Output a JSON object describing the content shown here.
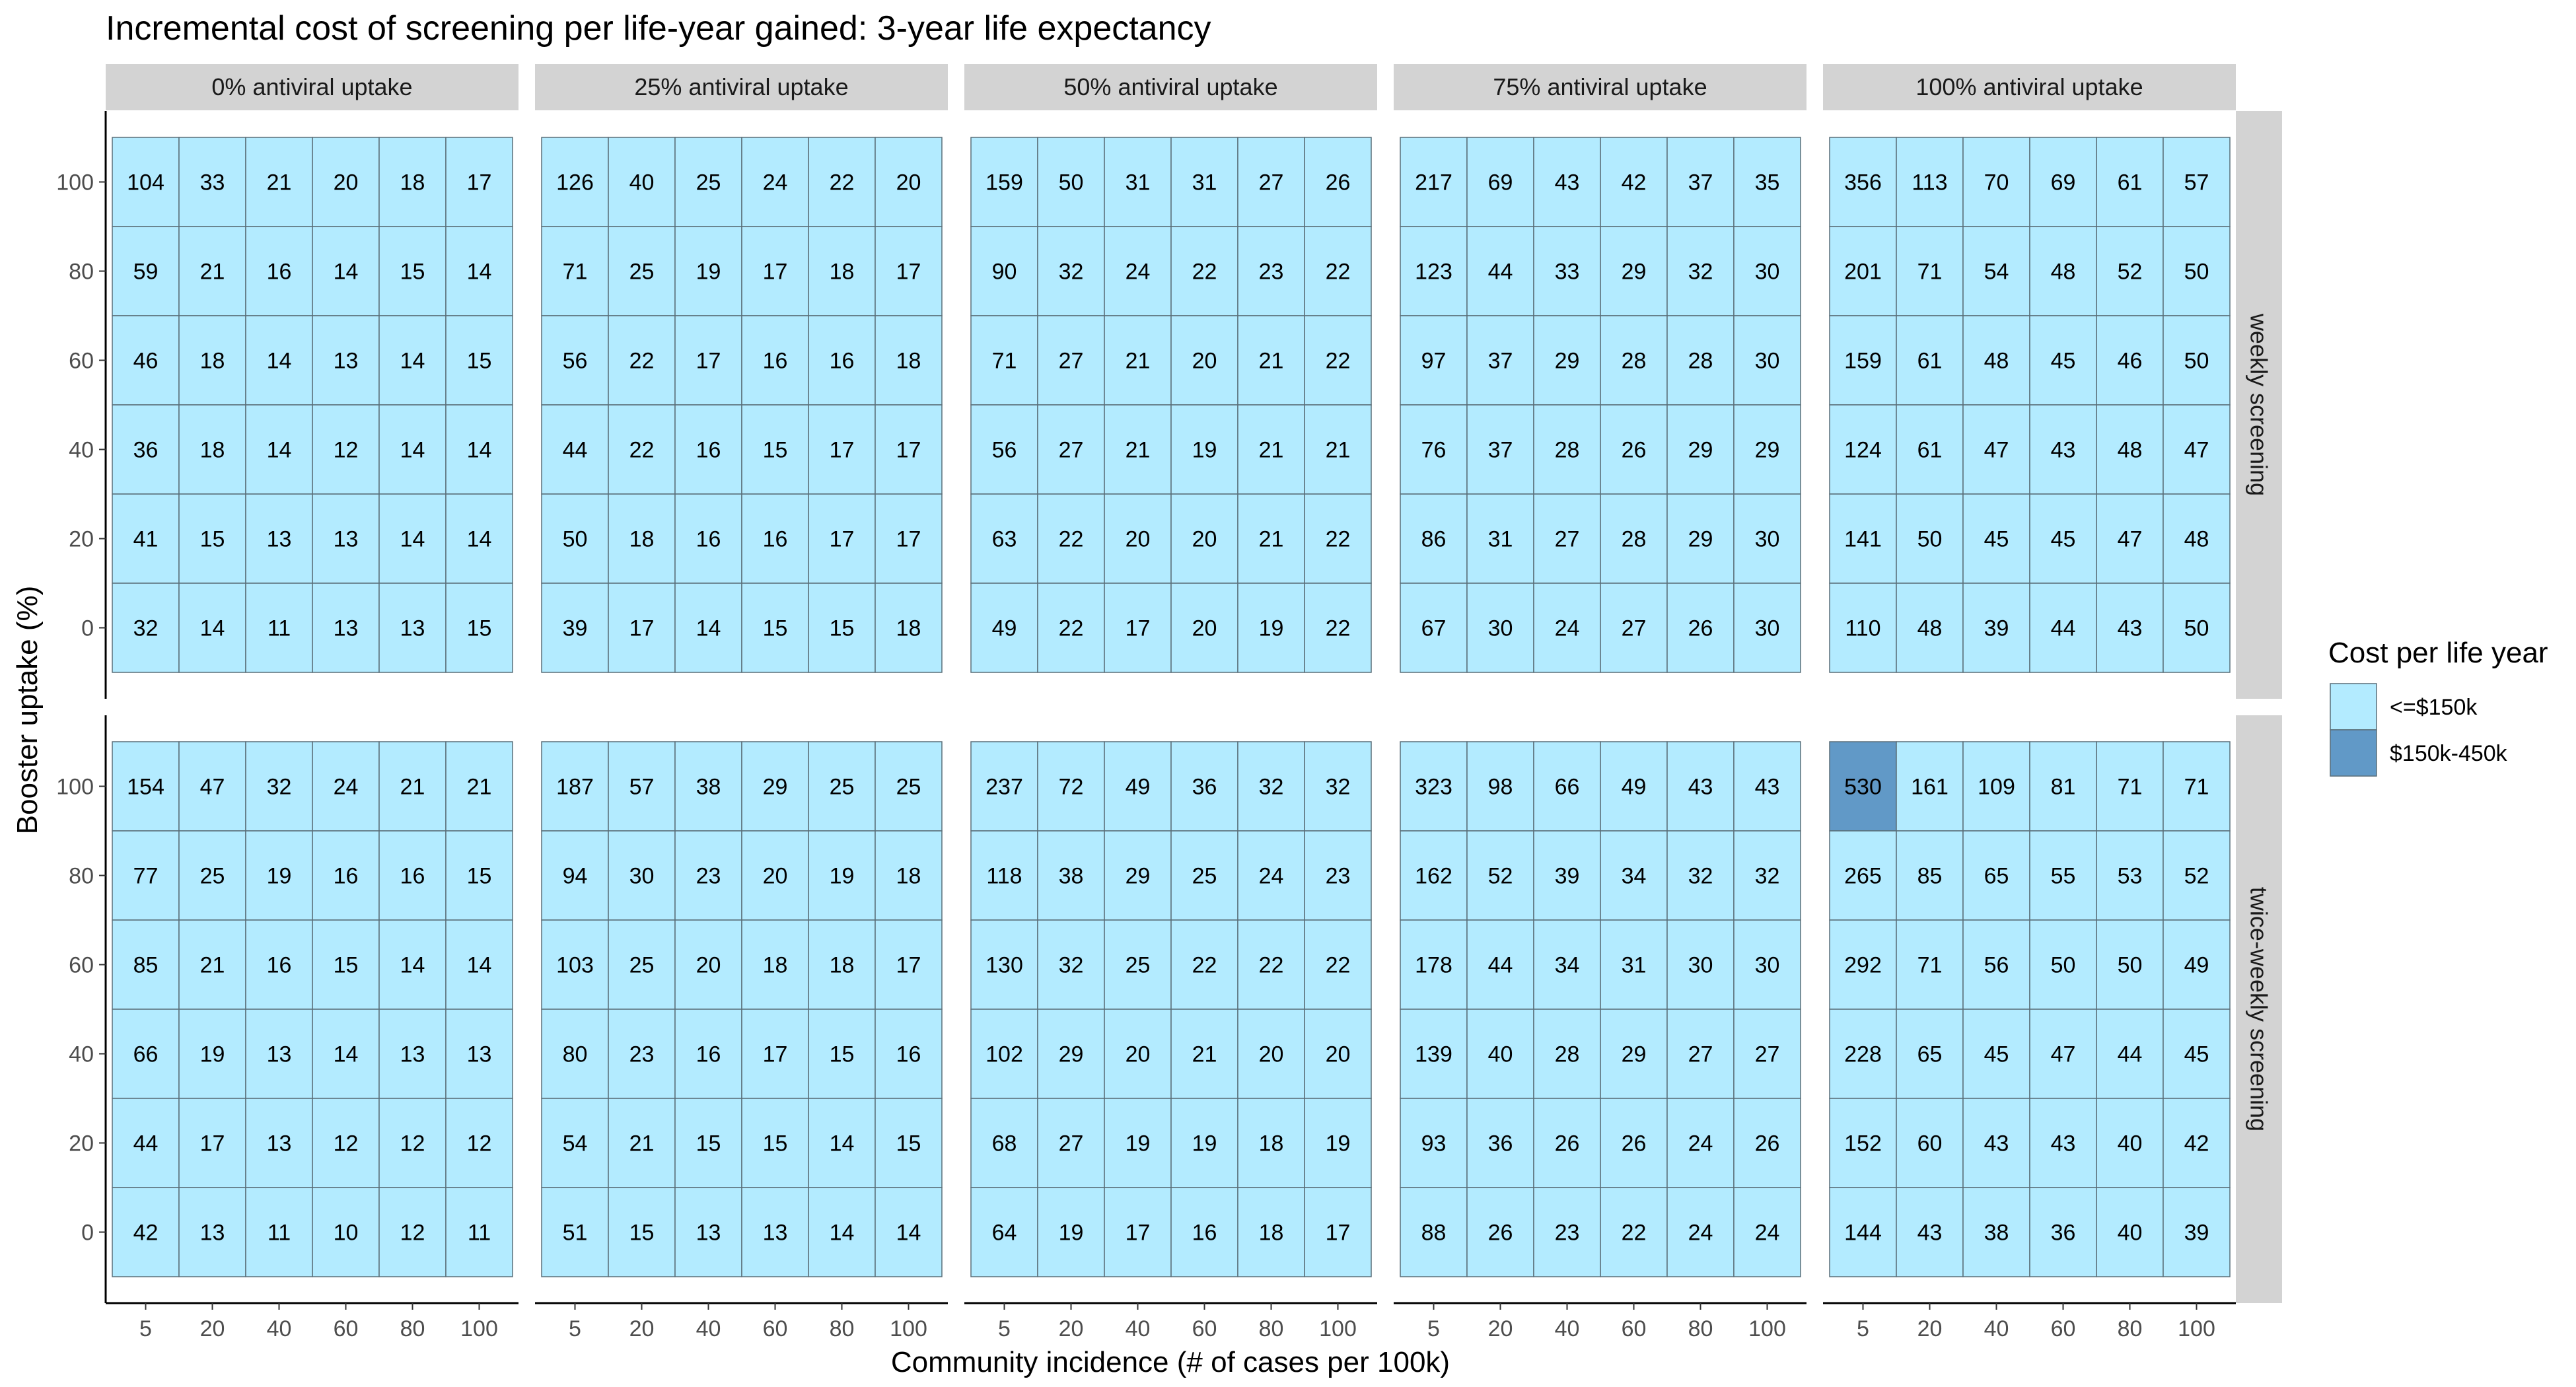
{
  "chart_data": {
    "type": "heatmap",
    "title": "Incremental cost of screening per life-year gained: 3-year life expectancy",
    "xlabel": "Community incidence (# of cases per 100k)",
    "ylabel": "Booster uptake (%)",
    "x": [
      "5",
      "20",
      "40",
      "60",
      "80",
      "100"
    ],
    "y": [
      "100",
      "80",
      "60",
      "40",
      "20",
      "0"
    ],
    "col_facets": [
      "0% antiviral uptake",
      "25% antiviral uptake",
      "50% antiviral uptake",
      "75% antiviral uptake",
      "100% antiviral uptake"
    ],
    "row_facets": [
      "weekly screening",
      "twice-weekly screening"
    ],
    "legend": {
      "title": "Cost per life year",
      "position": "right",
      "items": [
        {
          "label": "<=$150k",
          "color": "#b3ebff"
        },
        {
          "label": "$150k-450k",
          "color": "#6199c7"
        }
      ]
    },
    "threshold": 150,
    "colors": {
      "low": "#b3ebff",
      "high": "#6199c7",
      "border": "#5a6e78",
      "strip": "#d3d3d3"
    },
    "panels": [
      {
        "row": "weekly screening",
        "col": "0% antiviral uptake",
        "values": [
          [
            104,
            33,
            21,
            20,
            18,
            17
          ],
          [
            59,
            21,
            16,
            14,
            15,
            14
          ],
          [
            46,
            18,
            14,
            13,
            14,
            15
          ],
          [
            36,
            18,
            14,
            12,
            14,
            14
          ],
          [
            41,
            15,
            13,
            13,
            14,
            14
          ],
          [
            32,
            14,
            11,
            13,
            13,
            15
          ]
        ]
      },
      {
        "row": "weekly screening",
        "col": "25% antiviral uptake",
        "values": [
          [
            126,
            40,
            25,
            24,
            22,
            20
          ],
          [
            71,
            25,
            19,
            17,
            18,
            17
          ],
          [
            56,
            22,
            17,
            16,
            16,
            18
          ],
          [
            44,
            22,
            16,
            15,
            17,
            17
          ],
          [
            50,
            18,
            16,
            16,
            17,
            17
          ],
          [
            39,
            17,
            14,
            15,
            15,
            18
          ]
        ]
      },
      {
        "row": "weekly screening",
        "col": "50% antiviral uptake",
        "values": [
          [
            159,
            50,
            31,
            31,
            27,
            26
          ],
          [
            90,
            32,
            24,
            22,
            23,
            22
          ],
          [
            71,
            27,
            21,
            20,
            21,
            22
          ],
          [
            56,
            27,
            21,
            19,
            21,
            21
          ],
          [
            63,
            22,
            20,
            20,
            21,
            22
          ],
          [
            49,
            22,
            17,
            20,
            19,
            22
          ]
        ]
      },
      {
        "row": "weekly screening",
        "col": "75% antiviral uptake",
        "values": [
          [
            217,
            69,
            43,
            42,
            37,
            35
          ],
          [
            123,
            44,
            33,
            29,
            32,
            30
          ],
          [
            97,
            37,
            29,
            28,
            28,
            30
          ],
          [
            76,
            37,
            28,
            26,
            29,
            29
          ],
          [
            86,
            31,
            27,
            28,
            29,
            30
          ],
          [
            67,
            30,
            24,
            27,
            26,
            30
          ]
        ]
      },
      {
        "row": "weekly screening",
        "col": "100% antiviral uptake",
        "values": [
          [
            356,
            113,
            70,
            69,
            61,
            57
          ],
          [
            201,
            71,
            54,
            48,
            52,
            50
          ],
          [
            159,
            61,
            48,
            45,
            46,
            50
          ],
          [
            124,
            61,
            47,
            43,
            48,
            47
          ],
          [
            141,
            50,
            45,
            45,
            47,
            48
          ],
          [
            110,
            48,
            39,
            44,
            43,
            50
          ]
        ]
      },
      {
        "row": "twice-weekly screening",
        "col": "0% antiviral uptake",
        "values": [
          [
            154,
            47,
            32,
            24,
            21,
            21
          ],
          [
            77,
            25,
            19,
            16,
            16,
            15
          ],
          [
            85,
            21,
            16,
            15,
            14,
            14
          ],
          [
            66,
            19,
            13,
            14,
            13,
            13
          ],
          [
            44,
            17,
            13,
            12,
            12,
            12
          ],
          [
            42,
            13,
            11,
            10,
            12,
            11
          ]
        ]
      },
      {
        "row": "twice-weekly screening",
        "col": "25% antiviral uptake",
        "values": [
          [
            187,
            57,
            38,
            29,
            25,
            25
          ],
          [
            94,
            30,
            23,
            20,
            19,
            18
          ],
          [
            103,
            25,
            20,
            18,
            18,
            17
          ],
          [
            80,
            23,
            16,
            17,
            15,
            16
          ],
          [
            54,
            21,
            15,
            15,
            14,
            15
          ],
          [
            51,
            15,
            13,
            13,
            14,
            14
          ]
        ]
      },
      {
        "row": "twice-weekly screening",
        "col": "50% antiviral uptake",
        "values": [
          [
            237,
            72,
            49,
            36,
            32,
            32
          ],
          [
            118,
            38,
            29,
            25,
            24,
            23
          ],
          [
            130,
            32,
            25,
            22,
            22,
            22
          ],
          [
            102,
            29,
            20,
            21,
            20,
            20
          ],
          [
            68,
            27,
            19,
            19,
            18,
            19
          ],
          [
            64,
            19,
            17,
            16,
            18,
            17
          ]
        ]
      },
      {
        "row": "twice-weekly screening",
        "col": "75% antiviral uptake",
        "values": [
          [
            323,
            98,
            66,
            49,
            43,
            43
          ],
          [
            162,
            52,
            39,
            34,
            32,
            32
          ],
          [
            178,
            44,
            34,
            31,
            30,
            30
          ],
          [
            139,
            40,
            28,
            29,
            27,
            27
          ],
          [
            93,
            36,
            26,
            26,
            24,
            26
          ],
          [
            88,
            26,
            23,
            22,
            24,
            24
          ]
        ]
      },
      {
        "row": "twice-weekly screening",
        "col": "100% antiviral uptake",
        "values": [
          [
            530,
            161,
            109,
            81,
            71,
            71
          ],
          [
            265,
            85,
            65,
            55,
            53,
            52
          ],
          [
            292,
            71,
            56,
            50,
            50,
            49
          ],
          [
            228,
            65,
            45,
            47,
            44,
            45
          ],
          [
            152,
            60,
            43,
            43,
            40,
            42
          ],
          [
            144,
            43,
            38,
            36,
            40,
            39
          ]
        ]
      }
    ]
  }
}
